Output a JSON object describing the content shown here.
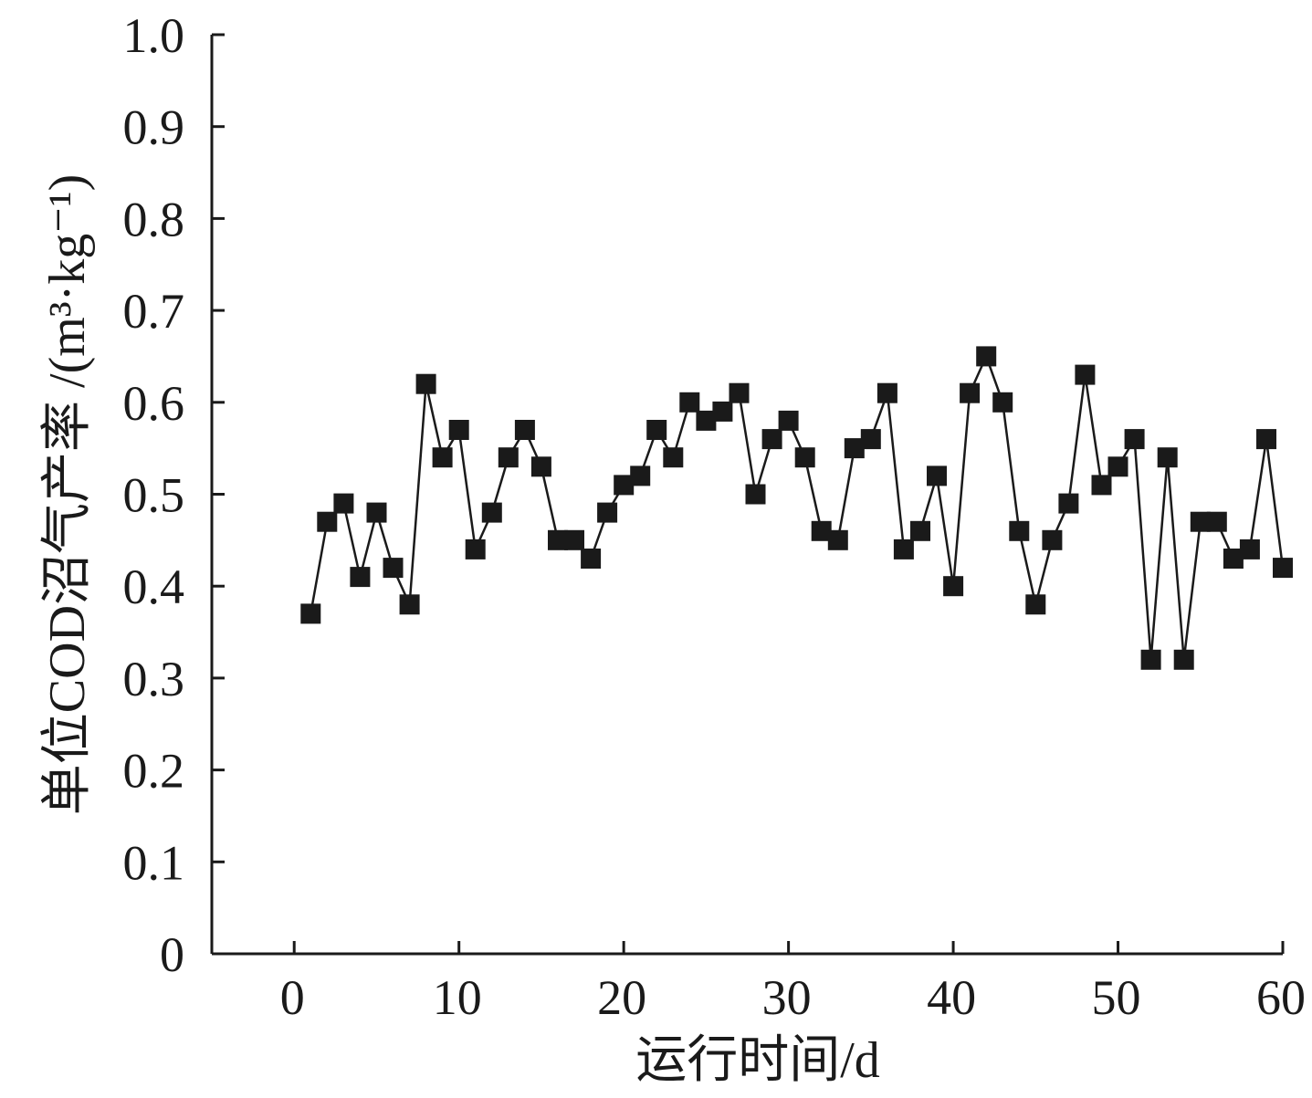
{
  "chart_data": {
    "type": "line",
    "title": "",
    "xlabel": "运行时间/d",
    "ylabel": "单位COD沼气产率 /(m³·kg⁻¹)",
    "xlim": [
      -5,
      60
    ],
    "ylim": [
      0,
      1.0
    ],
    "x_ticks": [
      0,
      10,
      20,
      30,
      40,
      50,
      60
    ],
    "x_tick_labels": [
      "0",
      "10",
      "20",
      "30",
      "40",
      "50",
      "60"
    ],
    "y_ticks": [
      0,
      0.1,
      0.2,
      0.3,
      0.4,
      0.5,
      0.6,
      0.7,
      0.8,
      0.9,
      1.0
    ],
    "y_tick_labels": [
      "0",
      "0.1",
      "0.2",
      "0.3",
      "0.4",
      "0.5",
      "0.6",
      "0.7",
      "0.8",
      "0.9",
      "1.0"
    ],
    "grid": false,
    "legend": "none",
    "marker": "square",
    "color": "#1a1a1a",
    "series": [
      {
        "x": [
          1,
          2,
          3,
          4,
          5,
          6,
          7,
          8,
          9,
          10,
          11,
          12,
          13,
          14,
          15,
          16,
          17,
          18,
          19,
          20,
          21,
          22,
          23,
          24,
          25,
          26,
          27,
          28,
          29,
          30,
          31,
          32,
          33,
          34,
          35,
          36,
          37,
          38,
          39,
          40,
          41,
          42,
          43,
          44,
          45,
          46,
          47,
          48,
          49,
          50,
          51,
          52,
          53,
          54,
          55,
          56,
          57,
          58,
          59,
          60
        ],
        "values": [
          0.37,
          0.47,
          0.49,
          0.41,
          0.48,
          0.42,
          0.38,
          0.62,
          0.54,
          0.57,
          0.44,
          0.48,
          0.54,
          0.57,
          0.53,
          0.45,
          0.45,
          0.43,
          0.48,
          0.51,
          0.52,
          0.57,
          0.54,
          0.6,
          0.58,
          0.59,
          0.61,
          0.5,
          0.56,
          0.58,
          0.54,
          0.46,
          0.45,
          0.55,
          0.56,
          0.61,
          0.44,
          0.46,
          0.52,
          0.4,
          0.61,
          0.65,
          0.6,
          0.46,
          0.38,
          0.45,
          0.49,
          0.63,
          0.51,
          0.53,
          0.56,
          0.32,
          0.54,
          0.32,
          0.47,
          0.47,
          0.43,
          0.44,
          0.56,
          0.42
        ]
      }
    ]
  }
}
